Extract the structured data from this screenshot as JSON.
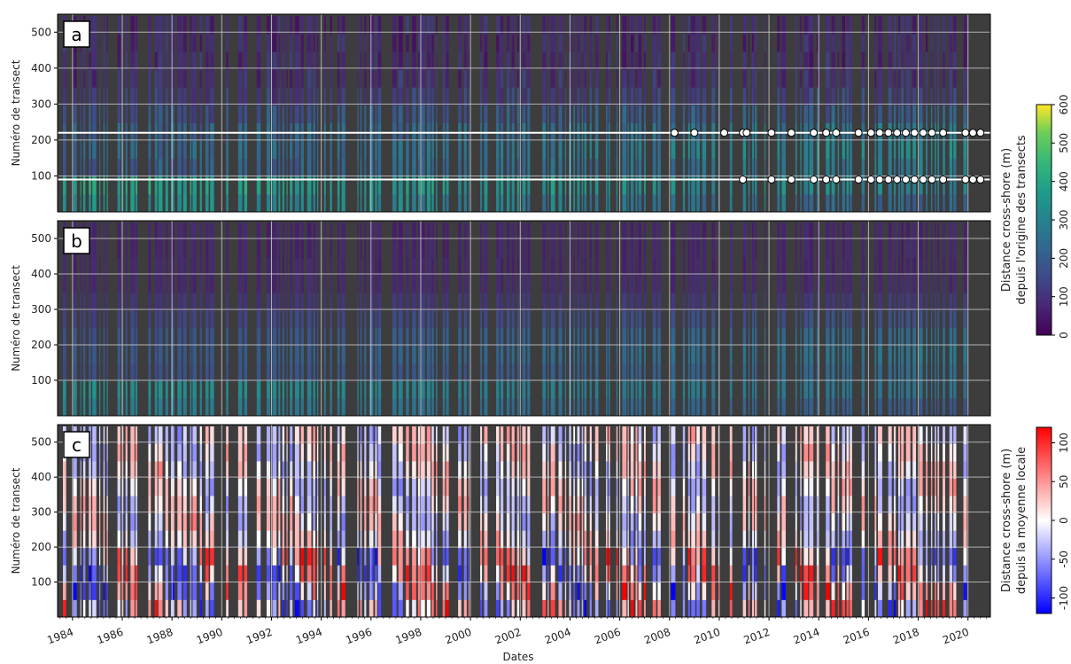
{
  "chart_data": {
    "type": "heatmap",
    "xlabel": "Dates",
    "x_ticks": [
      "1984",
      "1986",
      "1988",
      "1990",
      "1992",
      "1994",
      "1996",
      "1998",
      "2000",
      "2002",
      "2004",
      "2006",
      "2008",
      "2010",
      "2012",
      "2014",
      "2016",
      "2018",
      "2020"
    ],
    "xlim": [
      1983.4,
      2020.9
    ],
    "panels": [
      {
        "label": "a",
        "ylabel": "Numéro de transect",
        "ylim": [
          0,
          550
        ],
        "y_ticks": [
          100,
          200,
          300,
          400,
          500
        ],
        "colormap": "viridis",
        "colorbar": {
          "label_line1": "Distance cross-shore (m)",
          "label_line2": "depuis l'origine des transects",
          "ticks": [
            0,
            100,
            200,
            300,
            400,
            500,
            600
          ],
          "range": [
            0,
            600
          ]
        },
        "reference_lines_transect": [
          220,
          90
        ],
        "markers": [
          {
            "transect": 220,
            "dates": [
              2008.2,
              2009.0,
              2010.2,
              2010.95,
              2011.1,
              2012.1,
              2012.9,
              2013.8,
              2014.3,
              2014.7,
              2015.6,
              2016.1,
              2016.45,
              2016.8,
              2017.15,
              2017.5,
              2017.85,
              2018.2,
              2018.55,
              2019.0,
              2019.9,
              2020.2,
              2020.5
            ]
          },
          {
            "transect": 90,
            "dates": [
              2010.95,
              2012.1,
              2012.9,
              2013.8,
              2014.3,
              2014.7,
              2015.6,
              2016.1,
              2016.45,
              2016.8,
              2017.15,
              2017.5,
              2017.85,
              2018.2,
              2018.55,
              2019.0,
              2019.9,
              2020.2,
              2020.5
            ]
          }
        ]
      },
      {
        "label": "b",
        "ylabel": "Numéro de transect",
        "ylim": [
          0,
          550
        ],
        "y_ticks": [
          100,
          200,
          300,
          400,
          500
        ],
        "colormap": "viridis"
      },
      {
        "label": "c",
        "ylabel": "Numéro de transect",
        "ylim": [
          0,
          550
        ],
        "y_ticks": [
          100,
          200,
          300,
          400,
          500
        ],
        "colormap": "bwr",
        "colorbar": {
          "label_line1": "Distance cross-shore (m)",
          "label_line2": "depuis la moyenne locale",
          "ticks": [
            -100,
            -50,
            0,
            50,
            100
          ],
          "range": [
            -120,
            120
          ]
        }
      }
    ],
    "colors": {
      "no_data": "#3d3d3d",
      "grid": "#d8d8d8",
      "marker_fill": "#ffffff"
    }
  }
}
